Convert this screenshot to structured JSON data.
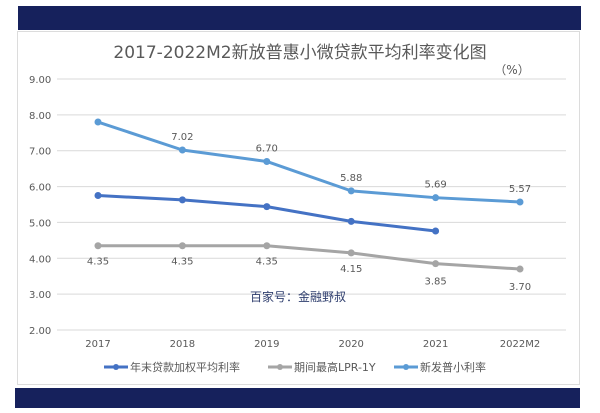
{
  "chart_data": {
    "type": "line",
    "title": "2017-2022M2新放普惠小微贷款平均利率变化图",
    "unit_label": "（%）",
    "categories": [
      "2017",
      "2018",
      "2019",
      "2020",
      "2021",
      "2022M2"
    ],
    "ylim": [
      2,
      9
    ],
    "yticks": [
      "2.00",
      "3.00",
      "4.00",
      "5.00",
      "6.00",
      "7.00",
      "8.00",
      "9.00"
    ],
    "grid": true,
    "legend_position": "bottom",
    "watermark": "百家号：金融野叔",
    "series": [
      {
        "name": "年末贷款加权平均利率",
        "color": "#4472c4",
        "values": [
          5.75,
          5.63,
          5.44,
          5.03,
          4.76,
          null
        ],
        "labels": []
      },
      {
        "name": "期间最高LPR-1Y",
        "color": "#a5a5a5",
        "values": [
          4.35,
          4.35,
          4.35,
          4.15,
          3.85,
          3.7
        ],
        "labels": [
          "4.35",
          "4.35",
          "4.35",
          "4.15",
          "3.85",
          "3.70"
        ],
        "label_pos": "below"
      },
      {
        "name": "新发普小利率",
        "color": "#5b9bd5",
        "values": [
          7.8,
          7.02,
          6.7,
          5.88,
          5.69,
          5.57
        ],
        "labels": [
          "",
          "7.02",
          "6.70",
          "5.88",
          "5.69",
          "5.57"
        ],
        "label_pos": "above"
      }
    ]
  }
}
